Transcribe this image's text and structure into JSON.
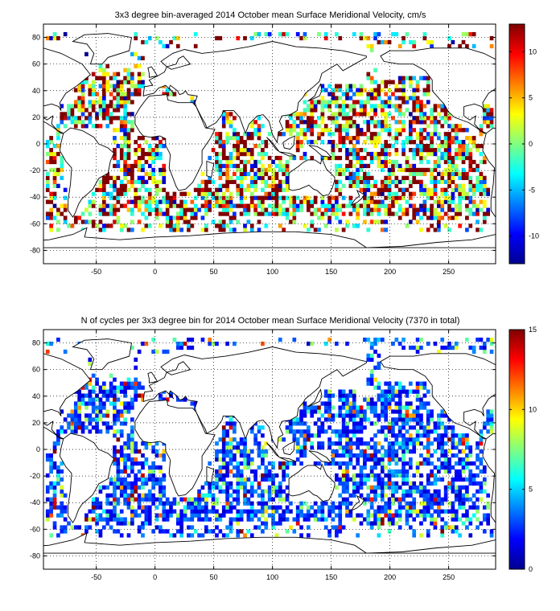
{
  "chart_data": [
    {
      "type": "heatmap",
      "title": "3x3 degree bin-averaged 2014 October mean Surface Meridional Velocity, cm/s",
      "xlabel": "",
      "ylabel": "",
      "xlim": [
        -95,
        290
      ],
      "ylim": [
        -90,
        90
      ],
      "xticks": [
        -50,
        0,
        50,
        100,
        150,
        200,
        250
      ],
      "yticks": [
        -80,
        -60,
        -40,
        -20,
        0,
        20,
        40,
        60,
        80
      ],
      "grid": true,
      "colorbar": {
        "range": [
          -13,
          13
        ],
        "ticks": [
          -10,
          -5,
          0,
          5,
          10
        ],
        "colormap": "jet"
      },
      "bin_size_deg": 3,
      "seed": 7,
      "value_mode": "velocity"
    },
    {
      "type": "heatmap",
      "title": "N of cycles per 3x3 degree bin for 2014 October mean Surface Meridional Velocity (7370 in total)",
      "xlabel": "",
      "ylabel": "",
      "xlim": [
        -95,
        290
      ],
      "ylim": [
        -90,
        90
      ],
      "xticks": [
        -50,
        0,
        50,
        100,
        150,
        200,
        250
      ],
      "yticks": [
        -80,
        -60,
        -40,
        -20,
        0,
        20,
        40,
        60,
        80
      ],
      "grid": true,
      "colorbar": {
        "range": [
          0,
          15
        ],
        "ticks": [
          0,
          5,
          10,
          15
        ],
        "colormap": "jet"
      },
      "bin_size_deg": 3,
      "seed": 7,
      "value_mode": "count",
      "total_cycles": 7370
    }
  ]
}
